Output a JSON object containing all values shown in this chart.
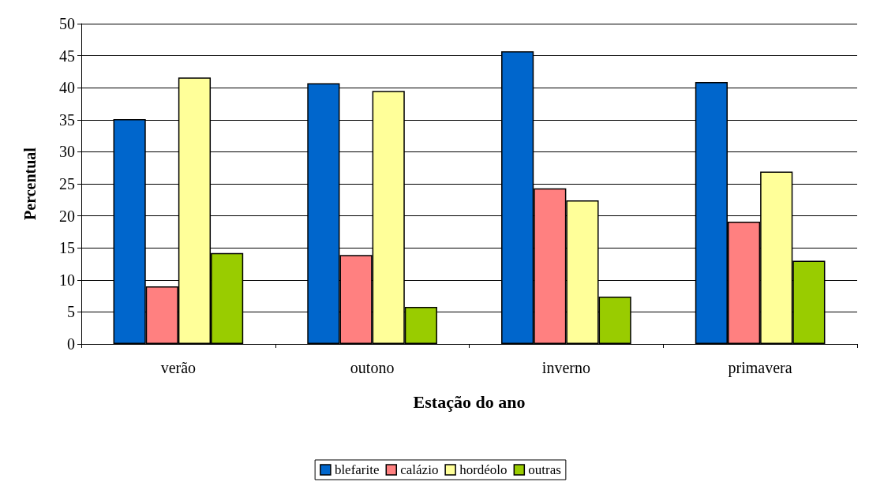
{
  "chart_data": {
    "type": "bar",
    "xlabel": "Estação do ano",
    "ylabel": "Percentual",
    "categories": [
      "verão",
      "outono",
      "inverno",
      "primavera"
    ],
    "series": [
      {
        "name": "blefarite",
        "color": "#0066cc",
        "values": [
          35.1,
          40.7,
          45.7,
          40.9
        ]
      },
      {
        "name": "calázio",
        "color": "#ff8080",
        "values": [
          9.0,
          13.9,
          24.3,
          19.1
        ]
      },
      {
        "name": "hordéolo",
        "color": "#ffff99",
        "values": [
          41.6,
          39.5,
          22.4,
          26.9
        ]
      },
      {
        "name": "outras",
        "color": "#99cc00",
        "values": [
          14.2,
          5.8,
          7.4,
          13.0
        ]
      }
    ],
    "ylim": [
      0,
      50
    ],
    "yticks": [
      0,
      5,
      10,
      15,
      20,
      25,
      30,
      35,
      40,
      45,
      50
    ],
    "grid": "y",
    "legend": "bottom"
  }
}
